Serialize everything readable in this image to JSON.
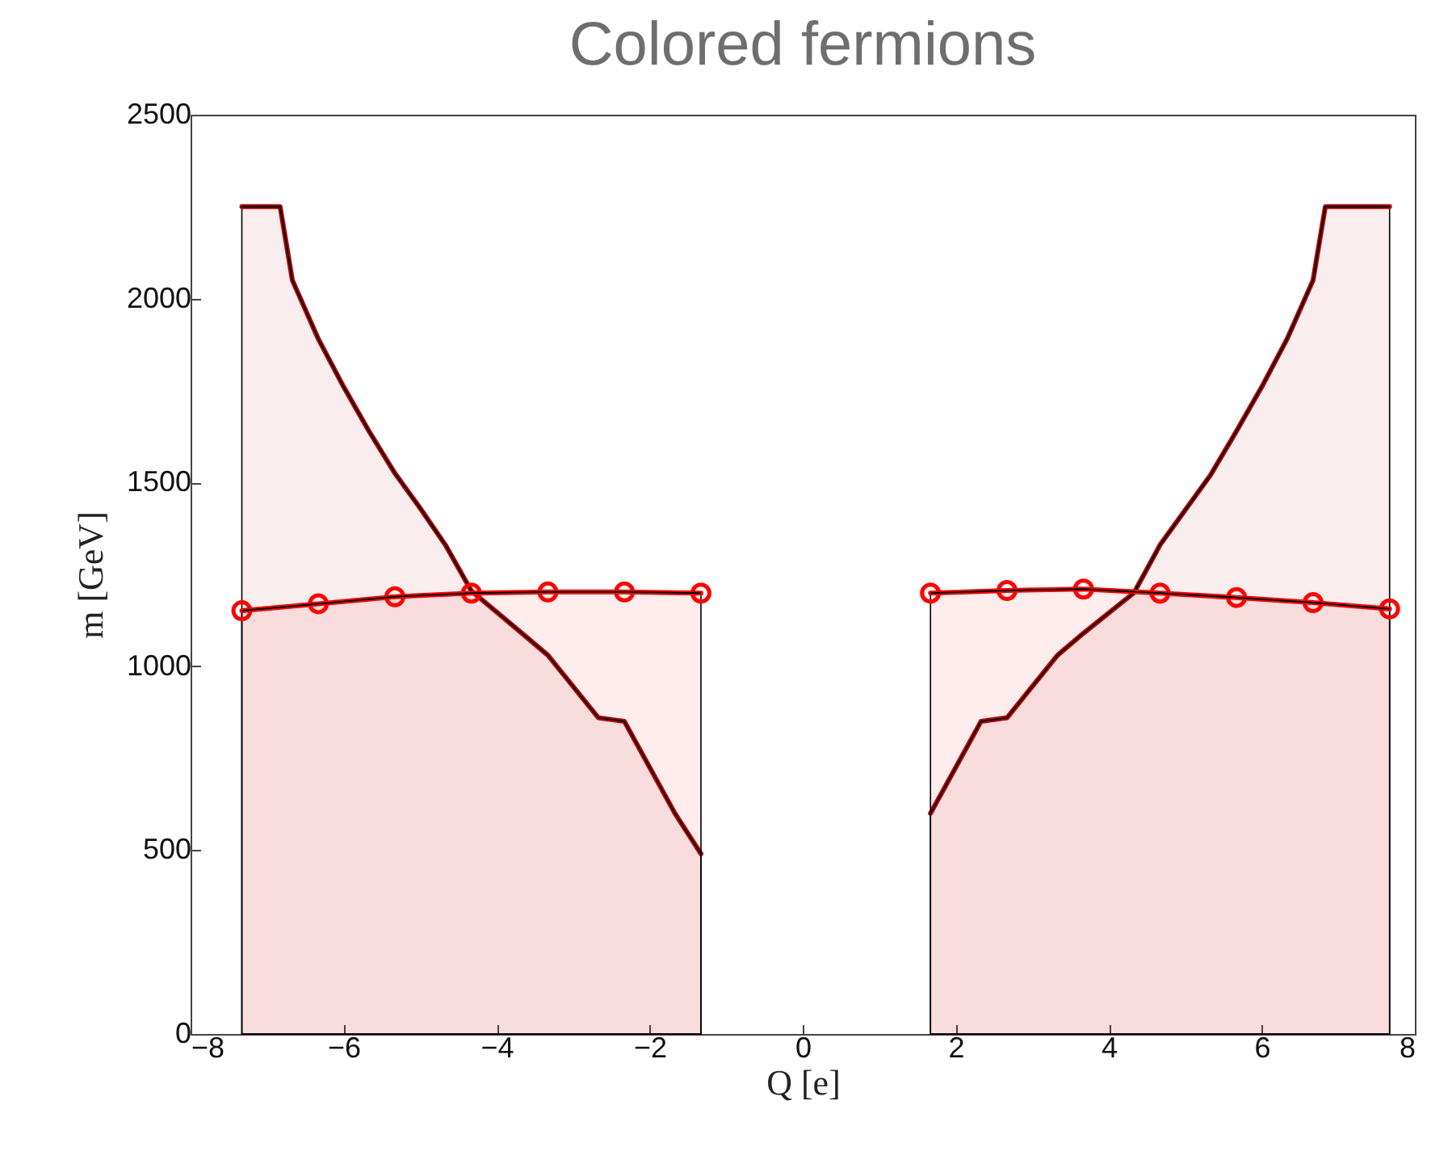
{
  "chart_data": {
    "type": "area",
    "title": "Colored fermions",
    "xlabel": "Q [e]",
    "ylabel": "m [GeV]",
    "xlim": [
      -8,
      8
    ],
    "xticks": [
      -8,
      -6,
      -4,
      -2,
      0,
      2,
      4,
      6,
      8
    ],
    "ylim": [
      0,
      2500
    ],
    "yticks": [
      0,
      500,
      1000,
      1500,
      2000,
      2500
    ],
    "grid": false,
    "line_style": "solid",
    "series": [
      {
        "color": "#b00000",
        "marker": "none",
        "x": [
          -7.33,
          -6.83,
          -6.67,
          -6.33,
          -6,
          -5.67,
          -5.33,
          -5,
          -4.67,
          -4.33,
          -3.67,
          -3.33,
          -2.67,
          -2.33,
          -1.67,
          -1.33
        ],
        "values": [
          2250,
          2250,
          2050,
          1890,
          1760,
          1640,
          1525,
          1430,
          1330,
          1205,
          1090,
          1030,
          860,
          850,
          600,
          490
        ]
      },
      {
        "color": "#b00000",
        "marker": "none",
        "x": [
          1.67,
          2.33,
          2.67,
          3.33,
          3.67,
          4.33,
          4.67,
          5.33,
          5.67,
          6,
          6.33,
          6.67,
          6.83,
          7.67
        ],
        "values": [
          600,
          850,
          860,
          1030,
          1090,
          1200,
          1330,
          1520,
          1640,
          1760,
          1890,
          2050,
          2250,
          2250
        ]
      },
      {
        "color": "#ff0000",
        "marker": "circle",
        "x": [
          -7.33,
          -6.33,
          -5.33,
          -4.33,
          -3.33,
          -2.33,
          -1.33
        ],
        "values": [
          1151,
          1170,
          1189,
          1199,
          1202,
          1202,
          1199
        ]
      },
      {
        "color": "#ff0000",
        "marker": "circle",
        "x": [
          1.67,
          2.67,
          3.67,
          4.67,
          5.67,
          6.67,
          7.67
        ],
        "values": [
          1199,
          1206,
          1210,
          1199,
          1187,
          1173,
          1156
        ]
      }
    ]
  }
}
